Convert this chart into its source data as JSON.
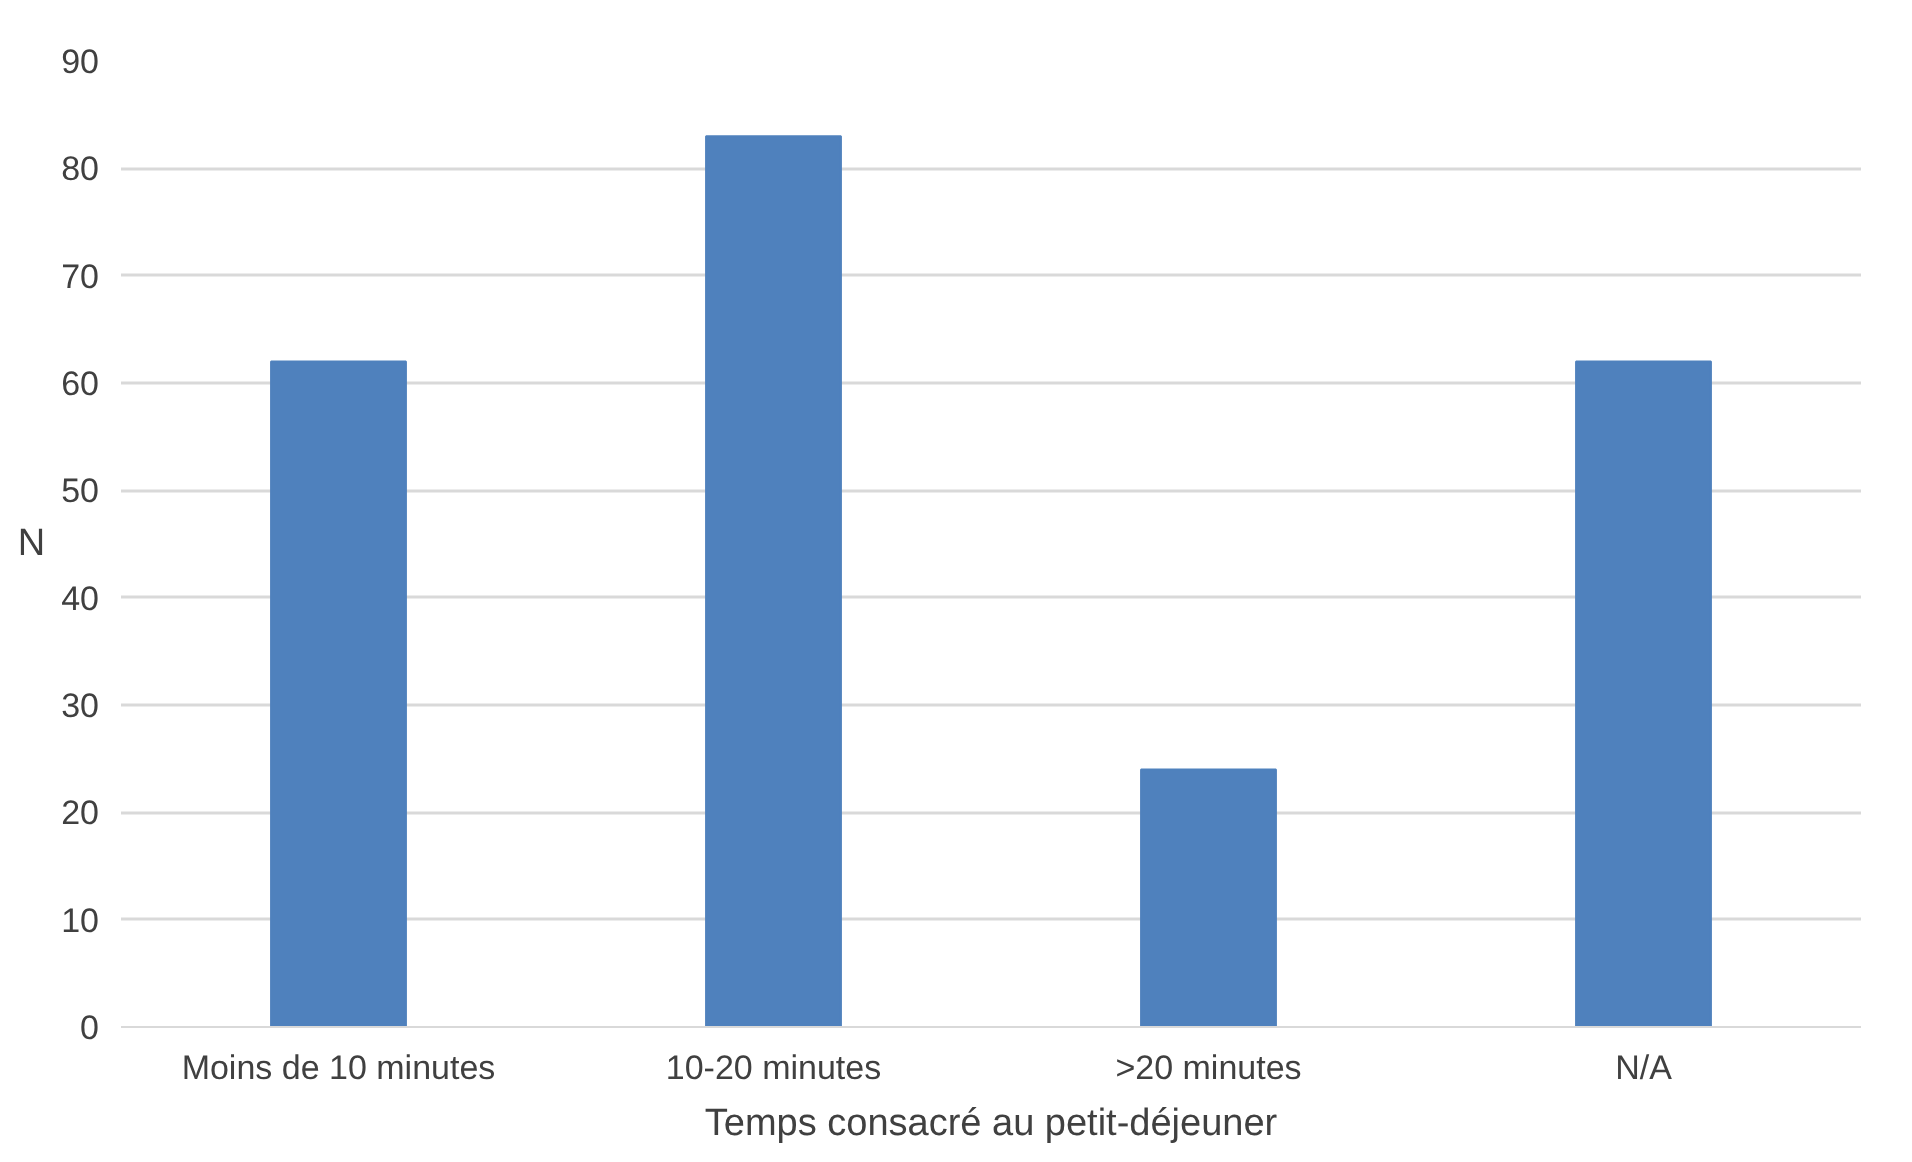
{
  "chart_data": {
    "type": "bar",
    "xlabel": "Temps consacré au petit-déjeuner",
    "ylabel": "N",
    "categories": [
      "Moins de 10 minutes",
      "10-20 minutes",
      ">20 minutes",
      "N/A"
    ],
    "values": [
      62,
      83,
      24,
      62
    ],
    "color": "#4f81bd",
    "ylim": [
      0,
      90
    ],
    "yticks": [
      0,
      10,
      20,
      30,
      40,
      50,
      60,
      70,
      80,
      90
    ],
    "grid": "y"
  }
}
